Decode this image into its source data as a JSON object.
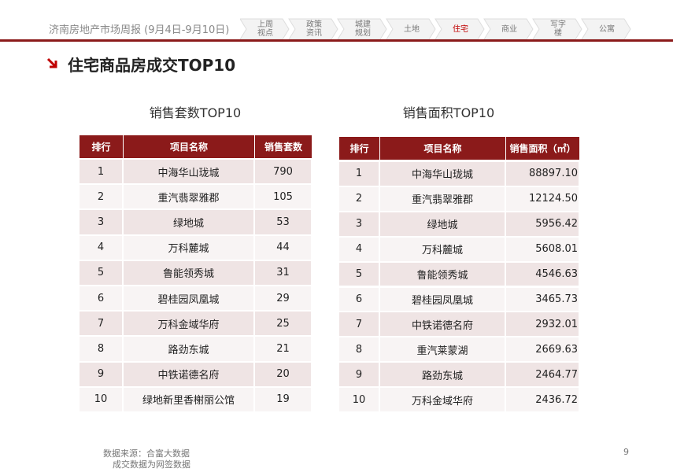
{
  "header": {
    "title": "济南房地产市场周报 (9月4日-9月10日)",
    "nav": [
      [
        "上周",
        "视点"
      ],
      [
        "政策",
        "资讯"
      ],
      [
        "城建",
        "规划"
      ],
      [
        "土地"
      ],
      [
        "住宅"
      ],
      [
        "商业"
      ],
      [
        "写字",
        "楼"
      ],
      [
        "公寓"
      ]
    ],
    "active": 4
  },
  "section_title": "住宅商品房成交TOP10",
  "tables": [
    {
      "title": "销售套数TOP10",
      "columns": [
        "排行",
        "项目名称",
        "销售套数"
      ],
      "rows": [
        [
          "1",
          "中海华山珑城",
          "790"
        ],
        [
          "2",
          "重汽翡翠雅郡",
          "105"
        ],
        [
          "3",
          "绿地城",
          "53"
        ],
        [
          "4",
          "万科麓城",
          "44"
        ],
        [
          "5",
          "鲁能领秀城",
          "31"
        ],
        [
          "6",
          "碧桂园凤凰城",
          "29"
        ],
        [
          "7",
          "万科金域华府",
          "25"
        ],
        [
          "8",
          "路劲东城",
          "21"
        ],
        [
          "9",
          "中铁诺德名府",
          "20"
        ],
        [
          "10",
          "绿地新里香榭丽公馆",
          "19"
        ]
      ]
    },
    {
      "title": "销售面积TOP10",
      "columns": [
        "排行",
        "项目名称",
        "销售面积（㎡）"
      ],
      "rows": [
        [
          "1",
          "中海华山珑城",
          "88897.10"
        ],
        [
          "2",
          "重汽翡翠雅郡",
          "12124.50"
        ],
        [
          "3",
          "绿地城",
          "5956.42"
        ],
        [
          "4",
          "万科麓城",
          "5608.01"
        ],
        [
          "5",
          "鲁能领秀城",
          "4546.63"
        ],
        [
          "6",
          "碧桂园凤凰城",
          "3465.73"
        ],
        [
          "7",
          "中铁诺德名府",
          "2932.01"
        ],
        [
          "8",
          "重汽莱蒙湖",
          "2669.63"
        ],
        [
          "9",
          "路劲东城",
          "2464.77"
        ],
        [
          "10",
          "万科金域华府",
          "2436.72"
        ]
      ]
    }
  ],
  "footer": {
    "source": "数据来源：合富大数据",
    "note": "成交数据为网签数据",
    "page": "9"
  }
}
